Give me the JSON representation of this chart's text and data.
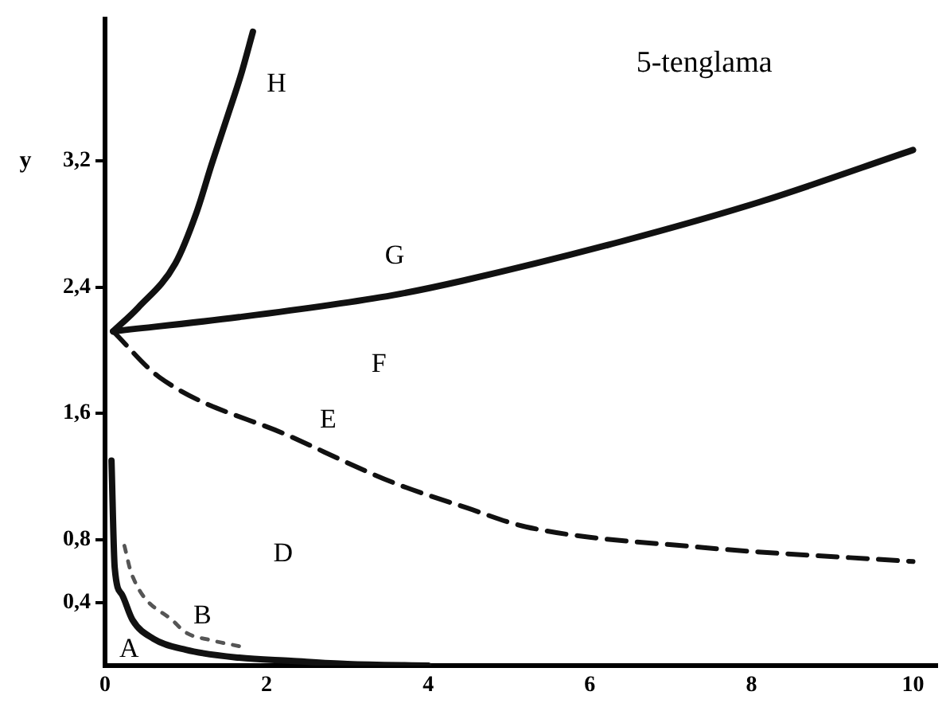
{
  "chart_data": {
    "type": "line",
    "title": "5-tenglama",
    "ylabel": "y",
    "xlim": [
      0,
      10.3
    ],
    "ylim": [
      0,
      4.1
    ],
    "xticks": [
      0,
      2,
      4,
      6,
      8,
      10
    ],
    "yticks": [
      {
        "value": 0.4,
        "label": "0,4"
      },
      {
        "value": 0.8,
        "label": "0,8"
      },
      {
        "value": 1.6,
        "label": "1,6"
      },
      {
        "value": 2.4,
        "label": "2,4"
      },
      {
        "value": 3.2,
        "label": "3,2"
      }
    ],
    "grid": false,
    "legend": false,
    "marker": "none",
    "series": [
      {
        "color": "#111111",
        "line_style": "solid",
        "x": [
          0.1,
          0.41,
          0.87,
          1.13,
          1.32,
          1.52,
          1.69,
          1.83
        ],
        "values": [
          2.12,
          2.27,
          2.55,
          2.87,
          3.18,
          3.49,
          3.76,
          4.02
        ]
      },
      {
        "color": "#111111",
        "line_style": "solid",
        "x": [
          0.1,
          1.66,
          3.57,
          4.42,
          6.39,
          8.1,
          10
        ],
        "values": [
          2.12,
          2.21,
          2.35,
          2.44,
          2.69,
          2.94,
          3.27
        ]
      },
      {
        "color": "#111111",
        "line_style": "dashed",
        "x": [
          0.1,
          0.67,
          2.31,
          3.57,
          4.48,
          5.21,
          7.38,
          10
        ],
        "values": [
          2.12,
          1.83,
          1.45,
          1.16,
          1.0,
          0.88,
          0.75,
          0.66
        ]
      },
      {
        "color": "#111111",
        "line_style": "solid",
        "x": [
          0.08,
          0.12,
          0.21,
          0.34,
          0.6,
          1.0,
          1.66,
          2.3,
          3,
          4
        ],
        "values": [
          1.3,
          0.62,
          0.45,
          0.29,
          0.17,
          0.1,
          0.05,
          0.03,
          0.01,
          0
        ]
      },
      {
        "color": "#555555",
        "line_style": "dotted",
        "x": [
          0.24,
          0.33,
          0.87,
          1.0,
          1.32,
          1.69
        ],
        "values": [
          0.76,
          0.58,
          0.27,
          0.21,
          0.16,
          0.12
        ]
      }
    ],
    "annotations": [
      "A",
      "B",
      "D",
      "E",
      "F",
      "G",
      "H"
    ]
  }
}
